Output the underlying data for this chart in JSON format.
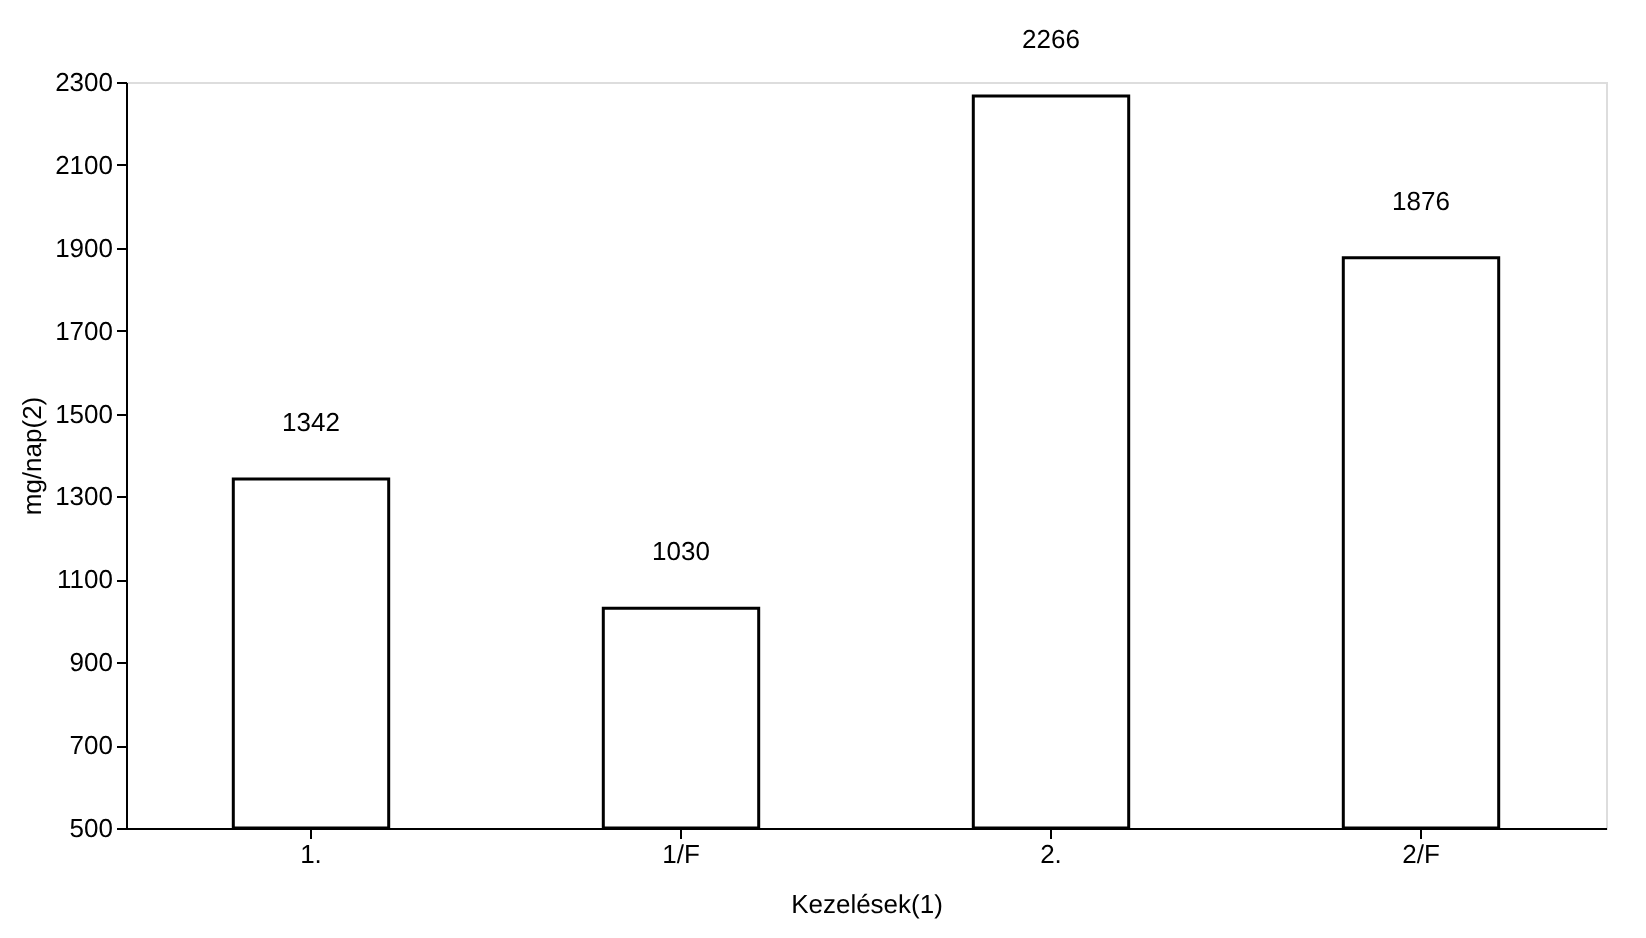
{
  "chart_data": {
    "type": "bar",
    "xlabel": "Kezelések(1)",
    "ylabel": "mg/nap(2)",
    "categories": [
      "1.",
      "1/F",
      "2.",
      "2/F"
    ],
    "values": [
      1342,
      1030,
      2266,
      1876
    ],
    "color": "#ffffff",
    "ylim": [
      500,
      2300
    ],
    "yticks": [
      500,
      700,
      900,
      1100,
      1300,
      1500,
      1700,
      1900,
      2100,
      2300
    ],
    "data_labels": true,
    "grid": false
  }
}
